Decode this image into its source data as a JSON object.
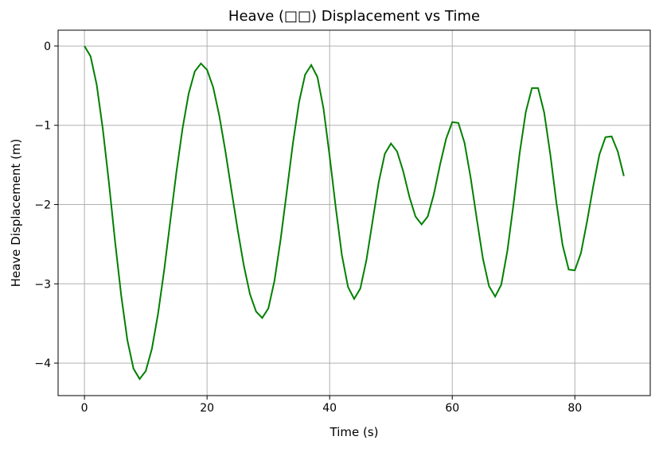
{
  "chart_data": {
    "type": "line",
    "title": "Heave (□□) Displacement vs Time",
    "x_label": "Time (s)",
    "y_label": "Heave Displacement (m)",
    "x": [
      0,
      1,
      2,
      3,
      4,
      5,
      6,
      7,
      8,
      9,
      10,
      11,
      12,
      13,
      14,
      15,
      16,
      17,
      18,
      19,
      20,
      21,
      22,
      23,
      24,
      25,
      26,
      27,
      28,
      29,
      30,
      31,
      32,
      33,
      34,
      35,
      36,
      37,
      38,
      39,
      40,
      41,
      42,
      43,
      44,
      45,
      46,
      47,
      48,
      49,
      50,
      51,
      52,
      53,
      54,
      55,
      56,
      57,
      58,
      59,
      60,
      61,
      62,
      63,
      64,
      65,
      66,
      67,
      68,
      69,
      70,
      71,
      72,
      73,
      74,
      75,
      76,
      77,
      78,
      79,
      80,
      81,
      82,
      83,
      84,
      85,
      86,
      87,
      88
    ],
    "series": [
      {
        "name": "Heave",
        "color": "#008000",
        "values": [
          0,
          -0.13,
          -0.49,
          -1.05,
          -1.73,
          -2.47,
          -3.15,
          -3.71,
          -4.07,
          -4.2,
          -4.1,
          -3.82,
          -3.38,
          -2.83,
          -2.21,
          -1.59,
          -1.04,
          -0.6,
          -0.32,
          -0.22,
          -0.3,
          -0.52,
          -0.88,
          -1.33,
          -1.83,
          -2.32,
          -2.77,
          -3.13,
          -3.35,
          -3.43,
          -3.31,
          -2.96,
          -2.44,
          -1.84,
          -1.23,
          -0.71,
          -0.36,
          -0.24,
          -0.39,
          -0.79,
          -1.39,
          -2.04,
          -2.64,
          -3.04,
          -3.19,
          -3.06,
          -2.7,
          -2.21,
          -1.72,
          -1.36,
          -1.23,
          -1.33,
          -1.58,
          -1.9,
          -2.15,
          -2.25,
          -2.15,
          -1.87,
          -1.5,
          -1.17,
          -0.96,
          -0.97,
          -1.22,
          -1.66,
          -2.18,
          -2.68,
          -3.03,
          -3.16,
          -3.01,
          -2.58,
          -1.99,
          -1.35,
          -0.83,
          -0.53,
          -0.53,
          -0.84,
          -1.37,
          -1.98,
          -2.51,
          -2.82,
          -2.83,
          -2.61,
          -2.21,
          -1.77,
          -1.37,
          -1.15,
          -1.14,
          -1.33,
          -1.64
        ]
      }
    ],
    "xlim": [
      -4.3,
      92.3
    ],
    "ylim": [
      -4.41,
      0.2
    ],
    "xticks": [
      0,
      20,
      40,
      60,
      80
    ],
    "yticks": [
      {
        "value": 0,
        "label": "0"
      },
      {
        "value": -1,
        "label": "−1"
      },
      {
        "value": -2,
        "label": "−2"
      },
      {
        "value": -3,
        "label": "−3"
      },
      {
        "value": -4,
        "label": "−4"
      }
    ],
    "grid": true
  }
}
